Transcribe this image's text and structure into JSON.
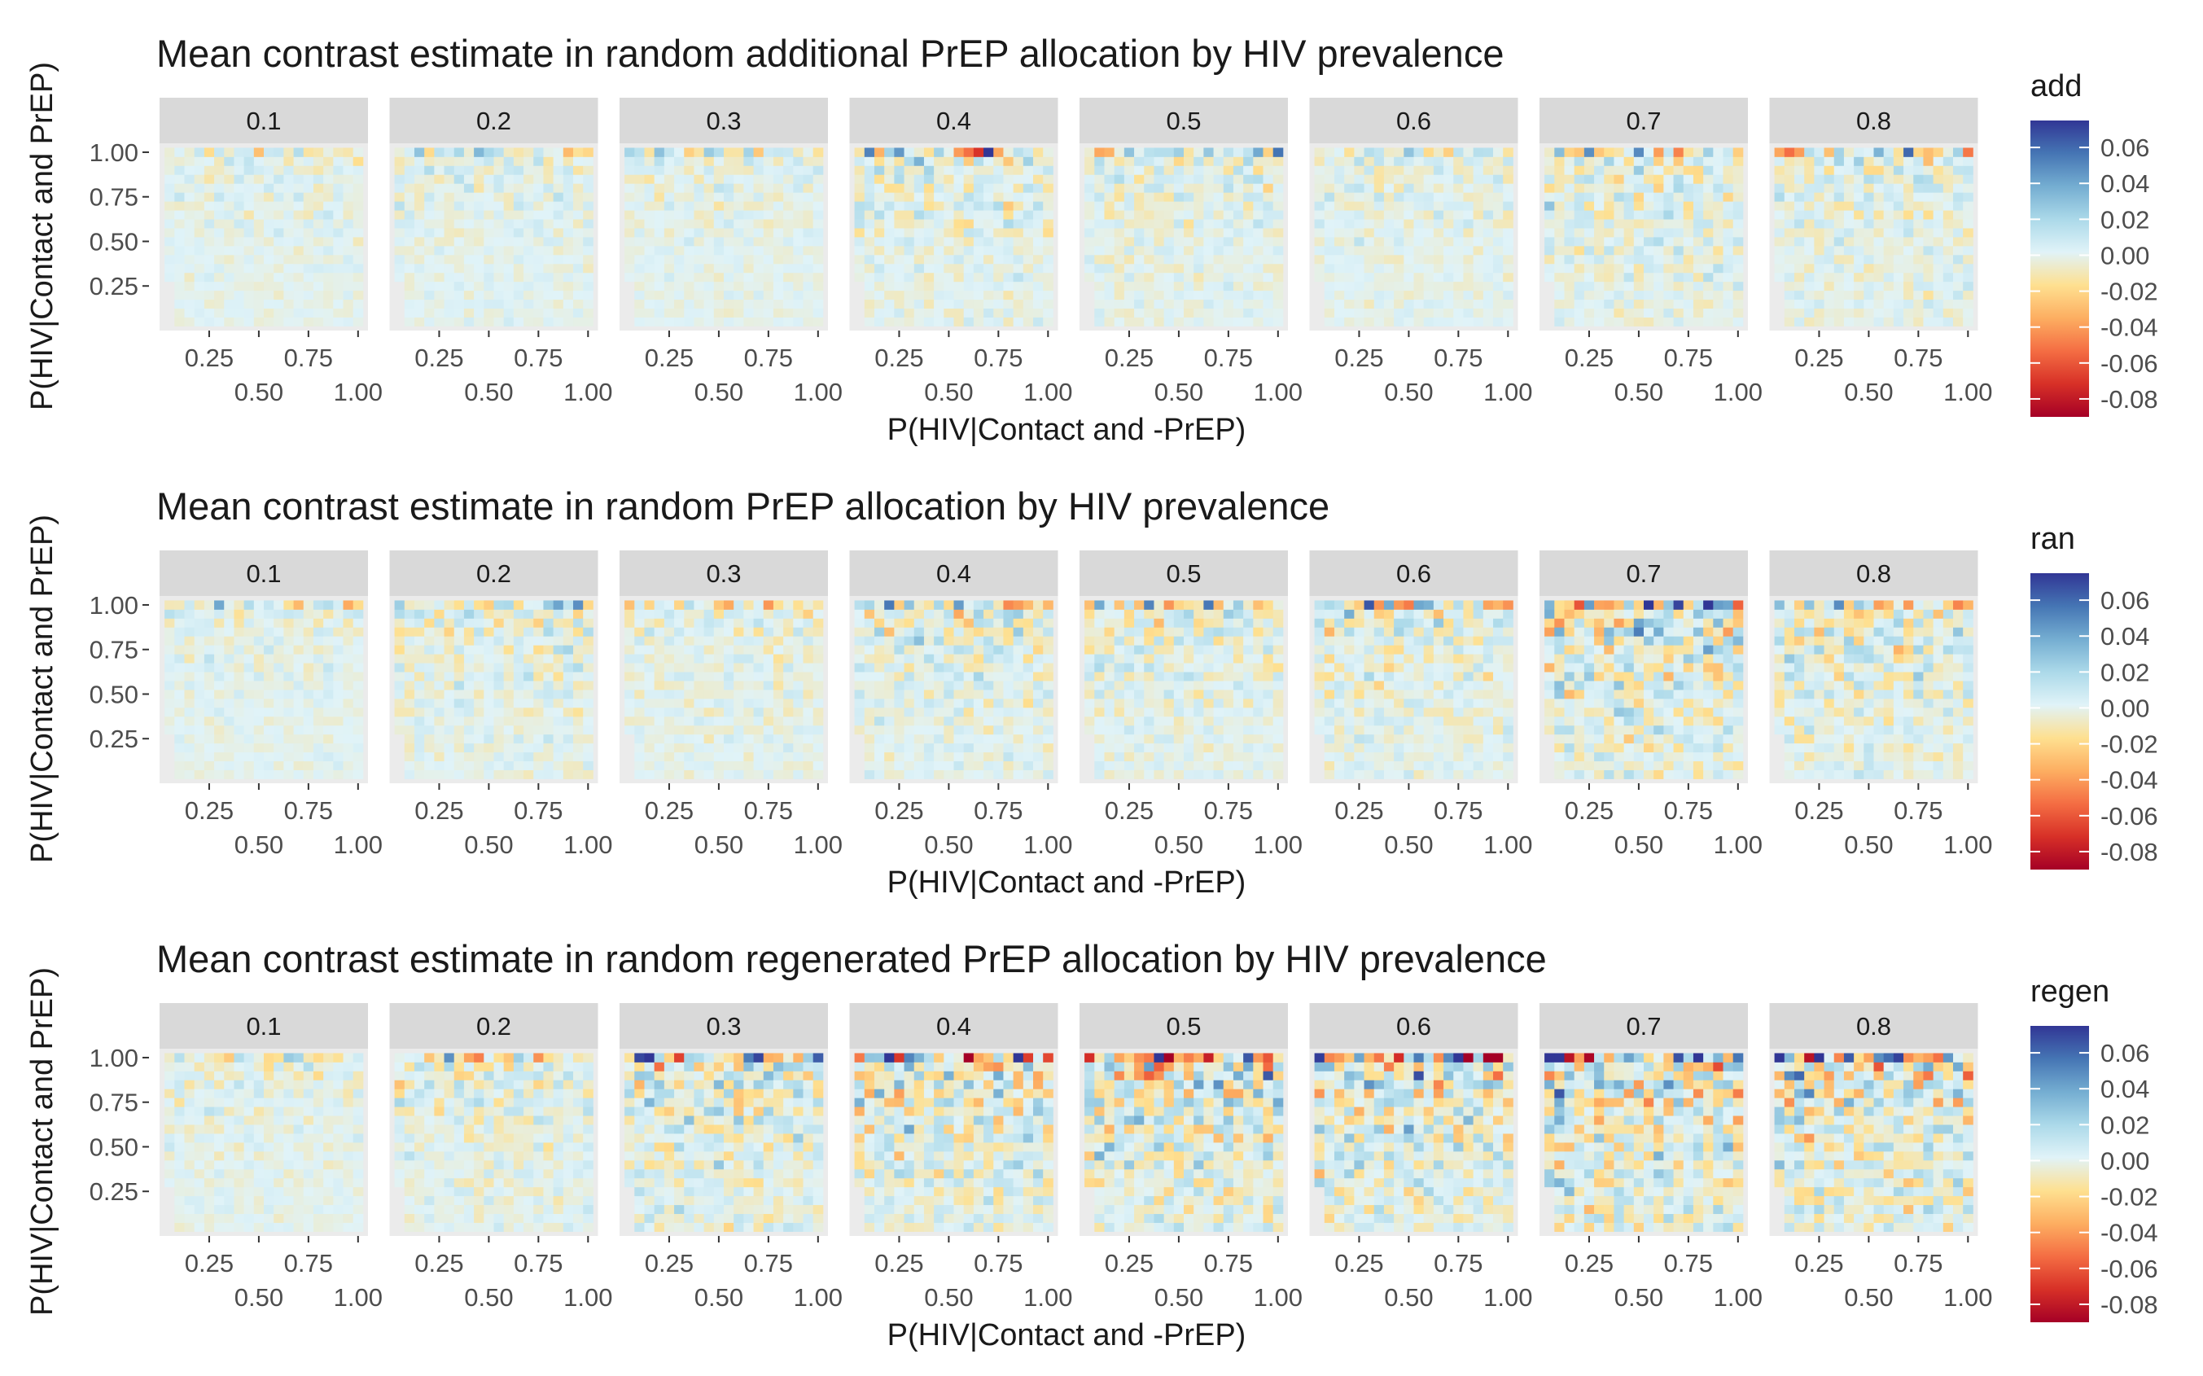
{
  "figure": {
    "colors": {
      "panel_background": "#EBEBEB",
      "strip_background": "#D9D9D9",
      "grid_major": "#FFFFFF",
      "axis_text": "#4D4D4D",
      "title_text": "#1A1A1A",
      "scale": [
        "#A50026",
        "#D73027",
        "#F46D43",
        "#FDAE61",
        "#FEE090",
        "#E0F3F8",
        "#ABD9E9",
        "#74ADD1",
        "#4575B4",
        "#313695"
      ]
    }
  },
  "chart_data": [
    {
      "type": "heatmap",
      "title": "Mean contrast estimate in random additional PrEP allocation by HIV prevalence",
      "xlabel": "P(HIV|Contact and -PrEP)",
      "ylabel": "P(HIV|Contact and PrEP)",
      "legend_title": "add",
      "facets": [
        "0.1",
        "0.2",
        "0.3",
        "0.4",
        "0.5",
        "0.6",
        "0.7",
        "0.8"
      ],
      "x_ticks": [
        0.25,
        0.5,
        0.75,
        1.0
      ],
      "x_tick_labels": [
        "0.25",
        "0.50",
        "0.75",
        "1.00"
      ],
      "y_ticks": [
        0.25,
        0.5,
        0.75,
        1.0
      ],
      "y_tick_labels": [
        "0.25",
        "0.50",
        "0.75",
        "1.00"
      ],
      "xlim": [
        0.0,
        1.05
      ],
      "ylim": [
        0.0,
        1.05
      ],
      "grid_values": [
        0.05,
        0.1,
        0.15,
        0.2,
        0.25,
        0.3,
        0.35,
        0.4,
        0.45,
        0.5,
        0.55,
        0.6,
        0.65,
        0.7,
        0.75,
        0.8,
        0.85,
        0.9,
        0.95,
        1.0
      ],
      "fill_limits": [
        -0.09,
        0.075
      ],
      "legend_ticks": [
        0.06,
        0.04,
        0.02,
        0.0,
        -0.02,
        -0.04,
        -0.06,
        -0.08
      ],
      "legend_tick_labels": [
        "0.06",
        "0.04",
        "0.02",
        "0.00",
        "-0.02",
        "-0.04",
        "-0.06",
        "-0.08"
      ],
      "grid": true,
      "legend_position": "right",
      "facet_intensity": [
        0.01,
        0.012,
        0.011,
        0.02,
        0.015,
        0.013,
        0.022,
        0.018
      ],
      "fill_note": "cell values vary around 0 with magnitude up to facet_intensity; strongest values in top row"
    },
    {
      "type": "heatmap",
      "title": "Mean contrast estimate in random PrEP allocation by HIV prevalence",
      "xlabel": "P(HIV|Contact and -PrEP)",
      "ylabel": "P(HIV|Contact and PrEP)",
      "legend_title": "ran",
      "facets": [
        "0.1",
        "0.2",
        "0.3",
        "0.4",
        "0.5",
        "0.6",
        "0.7",
        "0.8"
      ],
      "x_ticks": [
        0.25,
        0.5,
        0.75,
        1.0
      ],
      "x_tick_labels": [
        "0.25",
        "0.50",
        "0.75",
        "1.00"
      ],
      "y_ticks": [
        0.25,
        0.5,
        0.75,
        1.0
      ],
      "y_tick_labels": [
        "0.25",
        "0.50",
        "0.75",
        "1.00"
      ],
      "xlim": [
        0.0,
        1.05
      ],
      "ylim": [
        0.0,
        1.05
      ],
      "grid_values": [
        0.05,
        0.1,
        0.15,
        0.2,
        0.25,
        0.3,
        0.35,
        0.4,
        0.45,
        0.5,
        0.55,
        0.6,
        0.65,
        0.7,
        0.75,
        0.8,
        0.85,
        0.9,
        0.95,
        1.0
      ],
      "fill_limits": [
        -0.09,
        0.075
      ],
      "legend_ticks": [
        0.06,
        0.04,
        0.02,
        0.0,
        -0.02,
        -0.04,
        -0.06,
        -0.08
      ],
      "legend_tick_labels": [
        "0.06",
        "0.04",
        "0.02",
        "0.00",
        "-0.02",
        "-0.04",
        "-0.06",
        "-0.08"
      ],
      "grid": true,
      "legend_position": "right",
      "facet_intensity": [
        0.01,
        0.018,
        0.014,
        0.02,
        0.018,
        0.02,
        0.035,
        0.025
      ]
    },
    {
      "type": "heatmap",
      "title": "Mean contrast estimate in random regenerated PrEP allocation by HIV prevalence",
      "xlabel": "P(HIV|Contact and -PrEP)",
      "ylabel": "P(HIV|Contact and PrEP)",
      "legend_title": "regen",
      "facets": [
        "0.1",
        "0.2",
        "0.3",
        "0.4",
        "0.5",
        "0.6",
        "0.7",
        "0.8"
      ],
      "x_ticks": [
        0.25,
        0.5,
        0.75,
        1.0
      ],
      "x_tick_labels": [
        "0.25",
        "0.50",
        "0.75",
        "1.00"
      ],
      "y_ticks": [
        0.25,
        0.5,
        0.75,
        1.0
      ],
      "y_tick_labels": [
        "0.25",
        "0.50",
        "0.75",
        "1.00"
      ],
      "xlim": [
        0.0,
        1.05
      ],
      "ylim": [
        0.0,
        1.05
      ],
      "grid_values": [
        0.05,
        0.1,
        0.15,
        0.2,
        0.25,
        0.3,
        0.35,
        0.4,
        0.45,
        0.5,
        0.55,
        0.6,
        0.65,
        0.7,
        0.75,
        0.8,
        0.85,
        0.9,
        0.95,
        1.0
      ],
      "fill_limits": [
        -0.09,
        0.075
      ],
      "legend_ticks": [
        0.06,
        0.04,
        0.02,
        0.0,
        -0.02,
        -0.04,
        -0.06,
        -0.08
      ],
      "legend_tick_labels": [
        "0.06",
        "0.04",
        "0.02",
        "0.00",
        "-0.02",
        "-0.04",
        "-0.06",
        "-0.08"
      ],
      "grid": true,
      "legend_position": "right",
      "facet_intensity": [
        0.012,
        0.018,
        0.03,
        0.035,
        0.04,
        0.035,
        0.045,
        0.04
      ]
    }
  ]
}
